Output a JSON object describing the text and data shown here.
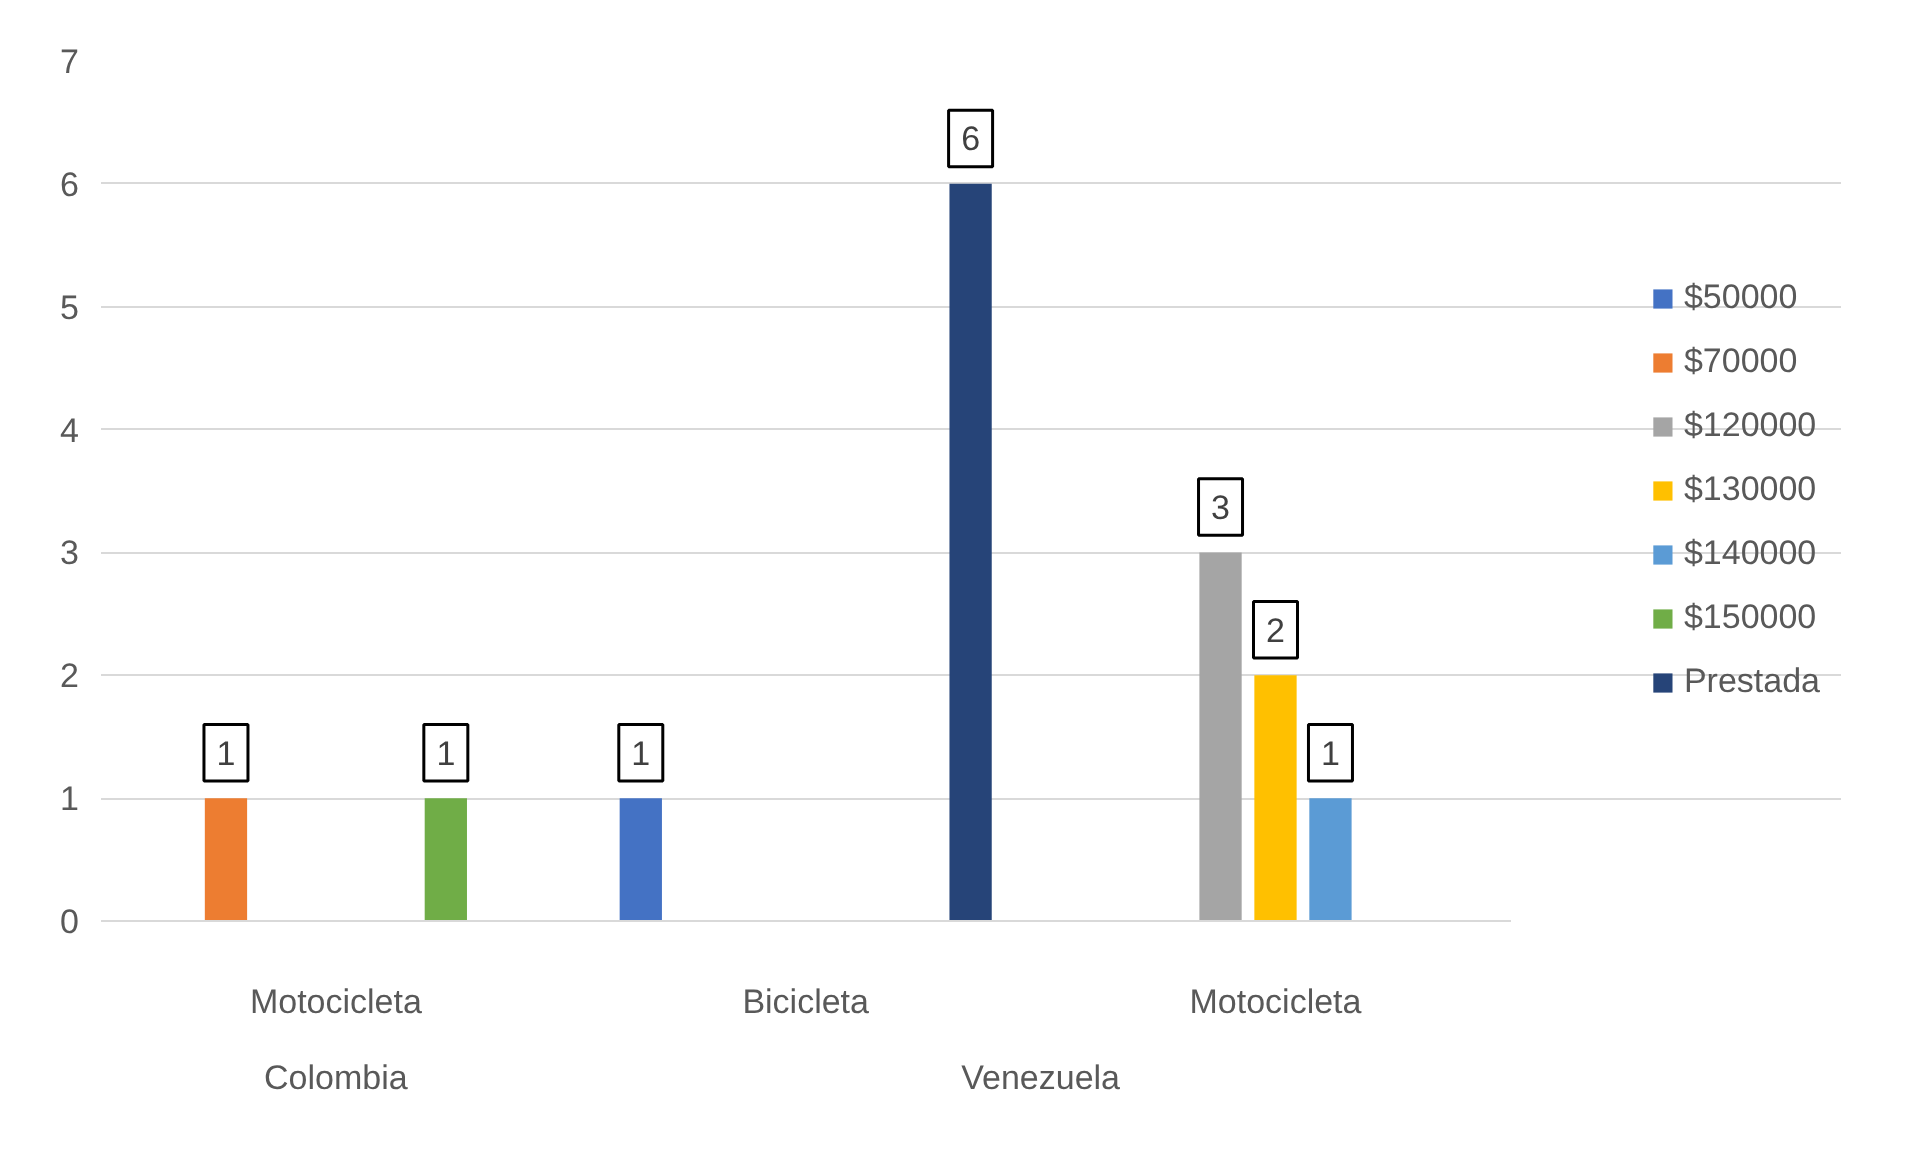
{
  "chart_data": {
    "type": "bar",
    "categories": [
      "Motocicleta",
      "Bicicleta",
      "Motocicleta"
    ],
    "series": [
      {
        "name": "$50000",
        "color": "#4472c4",
        "values": [
          null,
          1,
          null
        ]
      },
      {
        "name": "$70000",
        "color": "#ed7d31",
        "values": [
          1,
          null,
          null
        ]
      },
      {
        "name": "$120000",
        "color": "#a5a5a5",
        "values": [
          null,
          null,
          3
        ]
      },
      {
        "name": "$130000",
        "color": "#ffc000",
        "values": [
          null,
          null,
          2
        ]
      },
      {
        "name": "$140000",
        "color": "#5b9bd5",
        "values": [
          null,
          null,
          1
        ]
      },
      {
        "name": "$150000",
        "color": "#70ad47",
        "values": [
          1,
          null,
          null
        ]
      },
      {
        "name": "Prestada",
        "color": "#264478",
        "values": [
          null,
          6,
          null
        ]
      }
    ],
    "annotations": [
      "Colombia",
      "Venezuela"
    ],
    "ylim": [
      0,
      7
    ],
    "yticks": [
      0,
      1,
      2,
      3,
      4,
      5,
      6,
      7
    ],
    "grid": "y",
    "legend": "right",
    "data_labels": true
  }
}
